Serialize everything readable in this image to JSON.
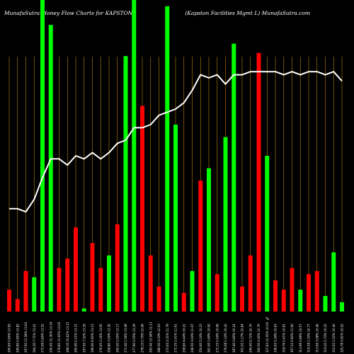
{
  "header": {
    "left": "MunafaSutra  Money Flow  Charts for KAPSTON",
    "right": "(Kapston  Facilities Mgmt L) MunafaSutra.com"
  },
  "colors": {
    "background": "#000000",
    "up": "#00ff00",
    "down": "#ff0000",
    "line": "#ffffff",
    "gridline": "#b8860b"
  },
  "chart_data": {
    "type": "bar",
    "title": "",
    "xlabel": "",
    "ylabel": "",
    "grid": true,
    "categories": [
      "290.65 0.95% 13.93",
      "299.85 0.85% 13.82",
      "297.50 12.58% 13.62",
      "264.30 7.71% 13.41",
      "272.06 0.65% 13.52",
      "245.45 12.36% 13.34",
      "278.60 11.93% 13.05",
      "268.10 10.62% 13.15",
      "265.90 0.21% 13.31",
      "297.05 7.32% 13.29",
      "296.60 6.92% 13.13",
      "276.05 2.16% 13.05",
      "258.80 3.05% 13.30",
      "265.50 2.05% 13.17",
      "272.40 1.56% 13.08",
      "277.90 2.55% 13.29",
      "278.15 0.75% 12.06",
      "292.40 13.58% 12.13",
      "286.50 4.33% 12.03",
      "273.04 3.31% 11.79",
      "272.35 2.41% 11.61",
      "258.60 4.44% 10.22",
      "246.50 3.04% 11.07",
      "254.60 5.24% 10.23",
      "261.45 3.49% 10.00",
      "272.33 0.54% 10.06",
      "276.08 1.14% 10.42",
      "287.40 3.60% 10.24",
      "301.02 1.17% 10.64",
      "294.40 6.72% 10.70",
      "292.50 4.50% 10.70",
      "327.63 12.55% 10.50",
      "336.05 5.34% 10.63",
      "318.76 0.41% 10.91",
      "307.22 0.92% 11.00",
      "313.96 0.66% 10.57",
      "319.38 1.33% 10.77",
      "313.06 3.08% 10.46",
      "319.20 2.73% 10.22",
      "310.52 1.52% 10.40",
      "325.78 5.91% 10.52"
    ],
    "direction": [
      "down",
      "down",
      "down",
      "up",
      "up",
      "up",
      "down",
      "down",
      "down",
      "up",
      "down",
      "down",
      "up",
      "down",
      "up",
      "up",
      "down",
      "down",
      "down",
      "up",
      "up",
      "down",
      "up",
      "down",
      "up",
      "down",
      "up",
      "up",
      "down",
      "down",
      "down",
      "up",
      "down",
      "down",
      "down",
      "up",
      "down",
      "down",
      "up",
      "up",
      "up"
    ],
    "flows": [
      7,
      4,
      13,
      11,
      100,
      92,
      14,
      17,
      27,
      1,
      22,
      14,
      18,
      28,
      82,
      100,
      66,
      18,
      8,
      98,
      60,
      6,
      13,
      42,
      46,
      12,
      56,
      86,
      8,
      18,
      83,
      50,
      10,
      7,
      14,
      7,
      12,
      13,
      5,
      19,
      3
    ],
    "net_line": [
      33,
      33,
      32,
      36,
      43,
      49,
      49,
      47,
      50,
      49,
      51,
      49,
      51,
      54,
      55,
      59,
      59,
      60,
      63,
      64,
      65,
      67,
      71,
      76,
      75,
      76,
      73,
      76,
      76,
      77,
      77,
      77,
      77,
      76,
      77,
      76,
      77,
      77,
      76,
      77,
      74
    ],
    "ylim": [
      0,
      100
    ],
    "point_label": "%"
  }
}
